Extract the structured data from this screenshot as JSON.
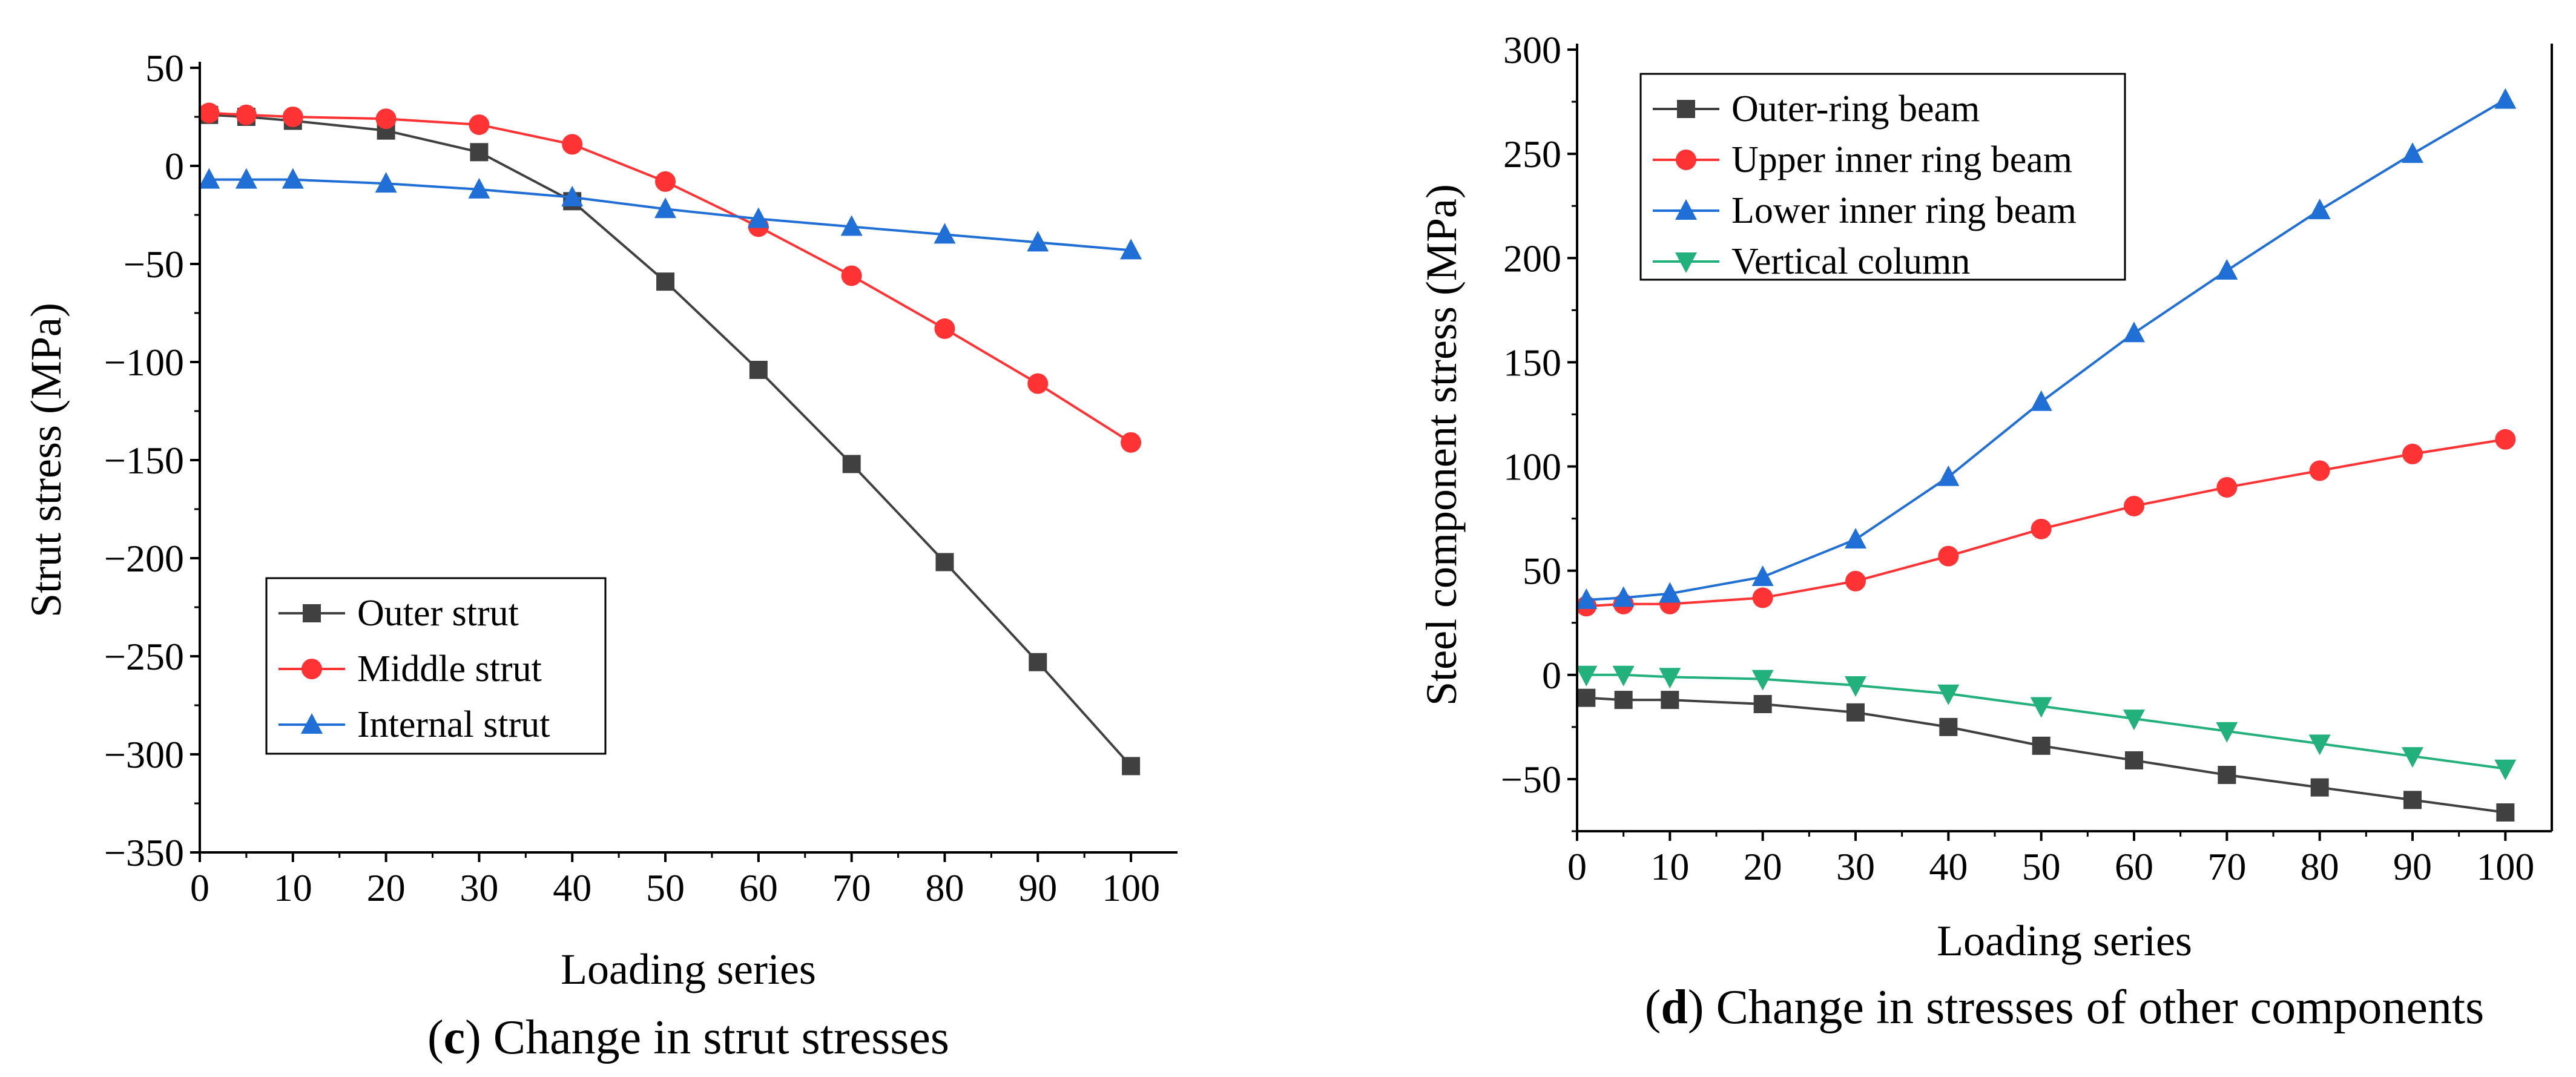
{
  "chart_data": [
    {
      "type": "line",
      "panel_label": "c",
      "caption": "Change in strut stresses",
      "xlabel": "Loading series",
      "ylabel": "Strut stress (MPa)",
      "xlim": [
        0,
        105
      ],
      "ylim": [
        -350,
        50
      ],
      "xticks": [
        0,
        10,
        20,
        30,
        40,
        50,
        60,
        70,
        80,
        90,
        100
      ],
      "yticks": [
        50,
        0,
        -50,
        -100,
        -150,
        -200,
        -250,
        -300,
        -350
      ],
      "legend_position": "lower-left",
      "x": [
        1,
        5,
        10,
        20,
        30,
        40,
        50,
        60,
        70,
        80,
        90,
        100
      ],
      "series": [
        {
          "name": "Outer strut",
          "color": "#404040",
          "marker": "square",
          "values": [
            26,
            25,
            23,
            18,
            7,
            -18,
            -59,
            -104,
            -152,
            -202,
            -253,
            -306
          ]
        },
        {
          "name": "Middle strut",
          "color": "#ff3333",
          "marker": "circle",
          "values": [
            27,
            26,
            25,
            24,
            21,
            11,
            -8,
            -31,
            -56,
            -83,
            -111,
            -141
          ]
        },
        {
          "name": "Internal strut",
          "color": "#1f6fd6",
          "marker": "triangle-up",
          "values": [
            -7,
            -7,
            -7,
            -9,
            -12,
            -16,
            -22,
            -27,
            -31,
            -35,
            -39,
            -43
          ]
        }
      ]
    },
    {
      "type": "line",
      "panel_label": "d",
      "caption": "Change in stresses of other components",
      "xlabel": "Loading series",
      "ylabel": "Steel component stress (MPa)",
      "xlim": [
        0,
        105
      ],
      "ylim": [
        -75,
        300
      ],
      "xticks": [
        0,
        10,
        20,
        30,
        40,
        50,
        60,
        70,
        80,
        90,
        100
      ],
      "yticks": [
        300,
        250,
        200,
        150,
        100,
        50,
        0,
        -50
      ],
      "legend_position": "top-left",
      "x": [
        1,
        5,
        10,
        20,
        30,
        40,
        50,
        60,
        70,
        80,
        90,
        100
      ],
      "series": [
        {
          "name": "Outer-ring beam",
          "color": "#404040",
          "marker": "square",
          "values": [
            -11,
            -12,
            -12,
            -14,
            -18,
            -25,
            -34,
            -41,
            -48,
            -54,
            -60,
            -66
          ]
        },
        {
          "name": "Upper inner ring beam",
          "color": "#ff3333",
          "marker": "circle",
          "values": [
            33,
            34,
            34,
            37,
            45,
            57,
            70,
            81,
            90,
            98,
            106,
            113
          ]
        },
        {
          "name": "Lower inner ring beam",
          "color": "#1f6fd6",
          "marker": "triangle-up",
          "values": [
            36,
            37,
            39,
            47,
            65,
            95,
            131,
            164,
            194,
            223,
            250,
            276
          ]
        },
        {
          "name": "Vertical column",
          "color": "#22b07d",
          "marker": "triangle-down",
          "values": [
            0,
            0,
            -1,
            -2,
            -5,
            -9,
            -15,
            -21,
            -27,
            -33,
            -39,
            -45
          ]
        }
      ]
    }
  ]
}
